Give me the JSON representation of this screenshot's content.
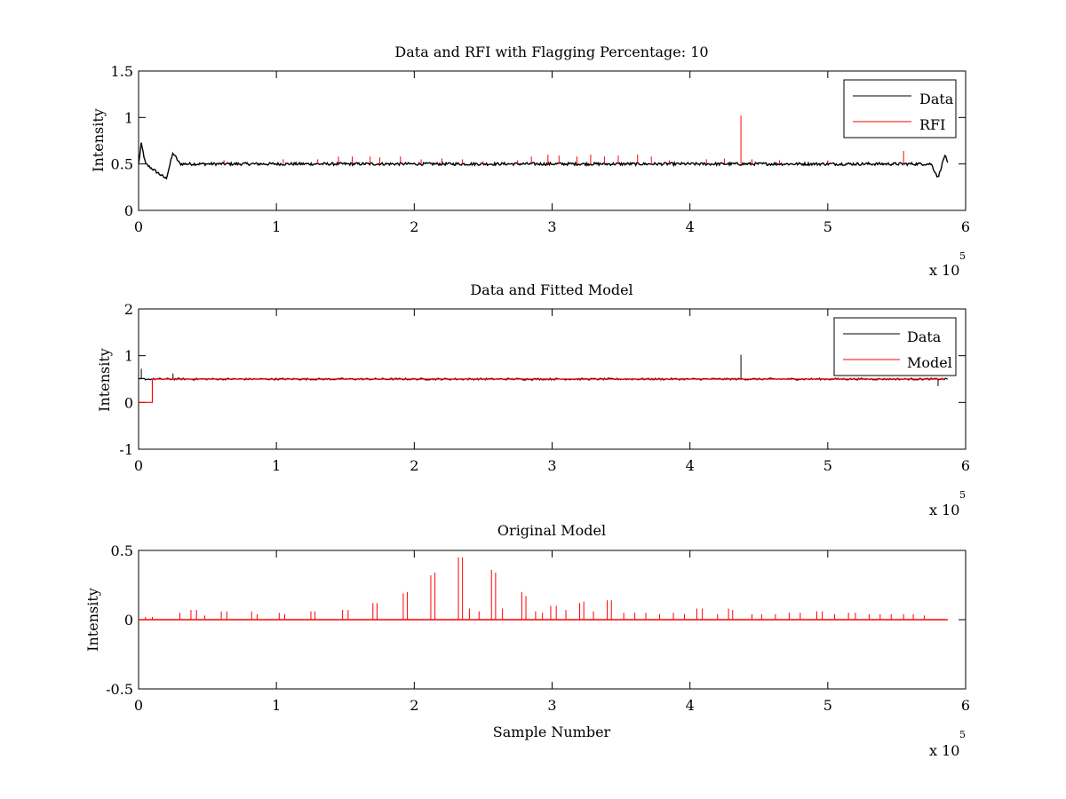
{
  "chart_data": [
    {
      "type": "line",
      "title": "Data and RFI with Flagging Percentage: 10",
      "xlabel": "",
      "ylabel": "Intensity",
      "xlim": [
        0,
        6
      ],
      "ylim": [
        0,
        1.5
      ],
      "xticks": [
        "0",
        "1",
        "2",
        "3",
        "4",
        "5",
        "6"
      ],
      "yticks": [
        "0",
        "0.5",
        "1",
        "1.5"
      ],
      "x_multiplier": "x 10",
      "x_multiplier_exp": "5",
      "legend_position": "top-right",
      "series": [
        {
          "name": "Data",
          "color": "#000000",
          "baseline": 0.5,
          "notes_points": [
            [
              0,
              0.5
            ],
            [
              0.02,
              0.72
            ],
            [
              0.05,
              0.5
            ],
            [
              0.2,
              0.34
            ],
            [
              0.25,
              0.62
            ],
            [
              0.3,
              0.5
            ],
            [
              5.75,
              0.5
            ],
            [
              5.8,
              0.35
            ],
            [
              5.85,
              0.6
            ],
            [
              5.87,
              0.5
            ]
          ]
        },
        {
          "name": "RFI",
          "color": "#ff0000",
          "spikes": [
            [
              0.62,
              0.54
            ],
            [
              1.05,
              0.55
            ],
            [
              1.3,
              0.55
            ],
            [
              1.45,
              0.58
            ],
            [
              1.55,
              0.58
            ],
            [
              1.68,
              0.58
            ],
            [
              1.75,
              0.57
            ],
            [
              1.9,
              0.58
            ],
            [
              2.05,
              0.55
            ],
            [
              2.2,
              0.56
            ],
            [
              2.35,
              0.55
            ],
            [
              2.5,
              0.53
            ],
            [
              2.75,
              0.54
            ],
            [
              2.85,
              0.58
            ],
            [
              2.97,
              0.6
            ],
            [
              3.05,
              0.59
            ],
            [
              3.18,
              0.58
            ],
            [
              3.28,
              0.6
            ],
            [
              3.38,
              0.58
            ],
            [
              3.48,
              0.59
            ],
            [
              3.62,
              0.6
            ],
            [
              3.72,
              0.58
            ],
            [
              3.85,
              0.54
            ],
            [
              4.12,
              0.55
            ],
            [
              4.25,
              0.56
            ],
            [
              4.37,
              1.02
            ],
            [
              4.45,
              0.55
            ],
            [
              4.65,
              0.54
            ],
            [
              5.0,
              0.54
            ],
            [
              5.55,
              0.64
            ]
          ]
        }
      ]
    },
    {
      "type": "line",
      "title": "Data and Fitted Model",
      "xlabel": "",
      "ylabel": "Intensity",
      "xlim": [
        0,
        6
      ],
      "ylim": [
        -1,
        2
      ],
      "xticks": [
        "0",
        "1",
        "2",
        "3",
        "4",
        "5",
        "6"
      ],
      "yticks": [
        "-1",
        "0",
        "1",
        "2"
      ],
      "x_multiplier": "x 10",
      "x_multiplier_exp": "5",
      "legend_position": "top-right",
      "series": [
        {
          "name": "Data",
          "color": "#000000",
          "baseline": 0.5,
          "spikes": [
            [
              0.02,
              0.72
            ],
            [
              0.25,
              0.62
            ],
            [
              4.37,
              1.02
            ],
            [
              5.8,
              0.35
            ]
          ]
        },
        {
          "name": "Model",
          "color": "#ff0000",
          "points": [
            [
              0,
              0
            ],
            [
              0.1,
              0
            ],
            [
              0.1,
              0.5
            ],
            [
              5.85,
              0.5
            ]
          ]
        }
      ]
    },
    {
      "type": "line",
      "title": "Original Model",
      "xlabel": "Sample Number",
      "ylabel": "Intensity",
      "xlim": [
        0,
        6
      ],
      "ylim": [
        -0.5,
        0.5
      ],
      "xticks": [
        "0",
        "1",
        "2",
        "3",
        "4",
        "5",
        "6"
      ],
      "yticks": [
        "-0.5",
        "0",
        "0.5"
      ],
      "x_multiplier": "x 10",
      "x_multiplier_exp": "5",
      "series": [
        {
          "color": "#ff0000",
          "baseline": 0,
          "spikes": [
            [
              0.05,
              0.02
            ],
            [
              0.1,
              0.02
            ],
            [
              0.3,
              0.05
            ],
            [
              0.38,
              0.07
            ],
            [
              0.42,
              0.07
            ],
            [
              0.48,
              0.03
            ],
            [
              0.6,
              0.06
            ],
            [
              0.64,
              0.06
            ],
            [
              0.82,
              0.06
            ],
            [
              0.86,
              0.04
            ],
            [
              1.02,
              0.05
            ],
            [
              1.06,
              0.04
            ],
            [
              1.25,
              0.06
            ],
            [
              1.28,
              0.06
            ],
            [
              1.48,
              0.07
            ],
            [
              1.52,
              0.07
            ],
            [
              1.7,
              0.12
            ],
            [
              1.73,
              0.12
            ],
            [
              1.92,
              0.19
            ],
            [
              1.95,
              0.2
            ],
            [
              2.12,
              0.32
            ],
            [
              2.15,
              0.34
            ],
            [
              2.32,
              0.45
            ],
            [
              2.35,
              0.45
            ],
            [
              2.4,
              0.08
            ],
            [
              2.47,
              0.06
            ],
            [
              2.56,
              0.36
            ],
            [
              2.59,
              0.34
            ],
            [
              2.64,
              0.08
            ],
            [
              2.78,
              0.2
            ],
            [
              2.81,
              0.17
            ],
            [
              2.88,
              0.06
            ],
            [
              2.93,
              0.05
            ],
            [
              2.99,
              0.1
            ],
            [
              3.03,
              0.1
            ],
            [
              3.1,
              0.07
            ],
            [
              3.2,
              0.12
            ],
            [
              3.23,
              0.13
            ],
            [
              3.3,
              0.06
            ],
            [
              3.4,
              0.14
            ],
            [
              3.43,
              0.14
            ],
            [
              3.52,
              0.05
            ],
            [
              3.6,
              0.05
            ],
            [
              3.68,
              0.05
            ],
            [
              3.78,
              0.04
            ],
            [
              3.88,
              0.05
            ],
            [
              3.96,
              0.04
            ],
            [
              4.05,
              0.08
            ],
            [
              4.09,
              0.08
            ],
            [
              4.2,
              0.04
            ],
            [
              4.28,
              0.08
            ],
            [
              4.31,
              0.07
            ],
            [
              4.45,
              0.04
            ],
            [
              4.52,
              0.04
            ],
            [
              4.62,
              0.04
            ],
            [
              4.72,
              0.05
            ],
            [
              4.8,
              0.05
            ],
            [
              4.92,
              0.06
            ],
            [
              4.96,
              0.06
            ],
            [
              5.05,
              0.04
            ],
            [
              5.15,
              0.05
            ],
            [
              5.2,
              0.05
            ],
            [
              5.3,
              0.04
            ],
            [
              5.38,
              0.04
            ],
            [
              5.46,
              0.04
            ],
            [
              5.55,
              0.04
            ],
            [
              5.62,
              0.04
            ],
            [
              5.7,
              0.03
            ]
          ]
        }
      ]
    }
  ]
}
